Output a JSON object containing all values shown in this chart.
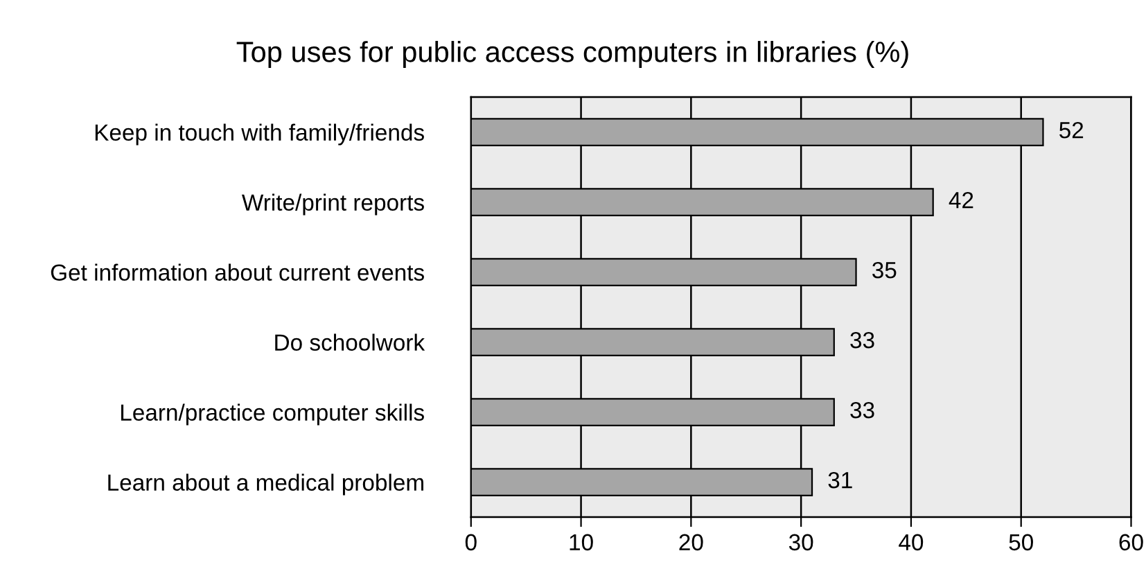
{
  "chart_data": {
    "type": "bar",
    "orientation": "horizontal",
    "title": "Top uses for public access computers in libraries (%)",
    "categories": [
      "Keep in touch with family/friends",
      "Write/print reports",
      "Get information about current events",
      "Do schoolwork",
      "Learn/practice computer skills",
      "Learn about a medical problem"
    ],
    "values": [
      52,
      42,
      35,
      33,
      33,
      31
    ],
    "color": "#a6a6a6",
    "xlim": [
      0,
      60
    ],
    "xticks": [
      0,
      10,
      20,
      30,
      40,
      50,
      60
    ],
    "grid": "x",
    "data_labels": true
  }
}
